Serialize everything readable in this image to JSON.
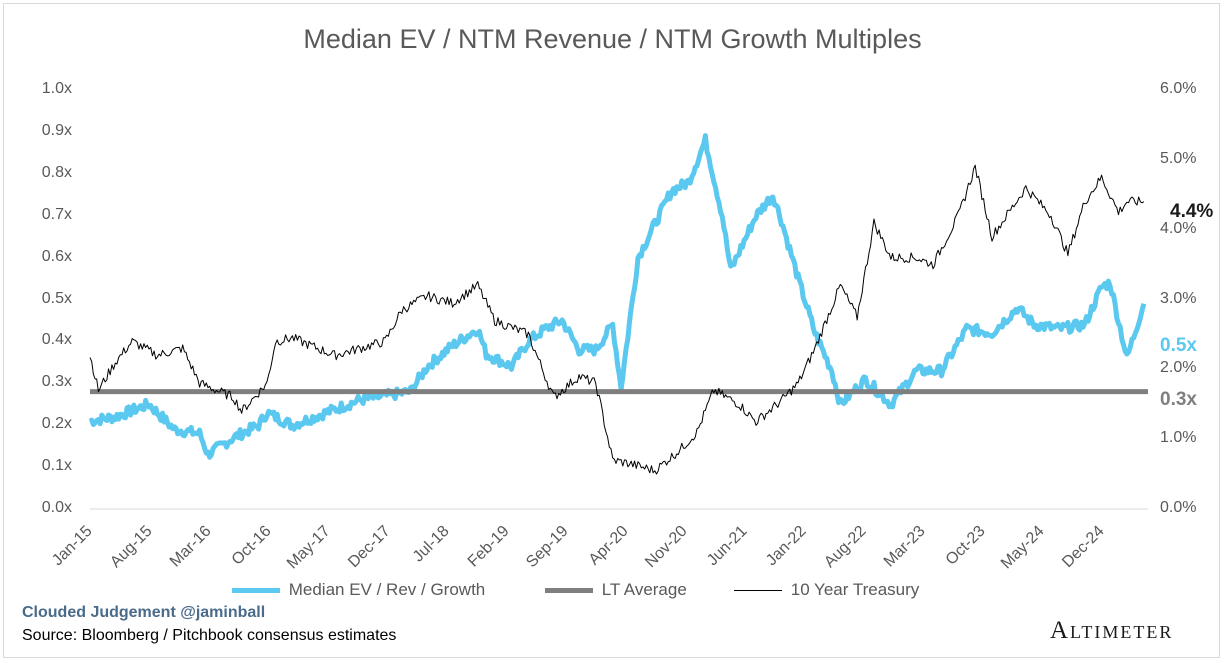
{
  "chart_data": {
    "type": "line",
    "title": "Median EV / NTM Revenue / NTM Growth Multiples",
    "x_tick_labels": [
      "Jan-15",
      "Aug-15",
      "Mar-16",
      "Oct-16",
      "May-17",
      "Dec-17",
      "Jul-18",
      "Feb-19",
      "Sep-19",
      "Apr-20",
      "Nov-20",
      "Jun-21",
      "Jan-22",
      "Aug-22",
      "Mar-23",
      "Oct-23",
      "May-24",
      "Dec-24"
    ],
    "y_left": {
      "ticks": [
        "0.0x",
        "0.1x",
        "0.2x",
        "0.3x",
        "0.4x",
        "0.5x",
        "0.6x",
        "0.7x",
        "0.8x",
        "0.9x",
        "1.0x"
      ],
      "ylim": [
        0,
        1.0
      ]
    },
    "y_right": {
      "ticks": [
        "0.0%",
        "1.0%",
        "2.0%",
        "3.0%",
        "4.0%",
        "5.0%",
        "6.0%"
      ],
      "ylim": [
        0,
        6.0
      ]
    },
    "grid": false,
    "legend_placement": "bottom",
    "series": [
      {
        "name": "Median EV / Rev / Growth",
        "axis": "left",
        "color": "#5bc8f0",
        "end_label": "0.5x",
        "points": [
          [
            "2015-01",
            0.21
          ],
          [
            "2015-04",
            0.22
          ],
          [
            "2015-08",
            0.25
          ],
          [
            "2015-11",
            0.19
          ],
          [
            "2016-02",
            0.18
          ],
          [
            "2016-03",
            0.13
          ],
          [
            "2016-06",
            0.17
          ],
          [
            "2016-09",
            0.2
          ],
          [
            "2016-10",
            0.23
          ],
          [
            "2017-01",
            0.2
          ],
          [
            "2017-05",
            0.23
          ],
          [
            "2017-09",
            0.26
          ],
          [
            "2017-12",
            0.27
          ],
          [
            "2018-03",
            0.28
          ],
          [
            "2018-05",
            0.34
          ],
          [
            "2018-08",
            0.39
          ],
          [
            "2018-11",
            0.43
          ],
          [
            "2018-12",
            0.37
          ],
          [
            "2019-03",
            0.34
          ],
          [
            "2019-05",
            0.4
          ],
          [
            "2019-07",
            0.43
          ],
          [
            "2019-09",
            0.45
          ],
          [
            "2019-11",
            0.38
          ],
          [
            "2020-01",
            0.38
          ],
          [
            "2020-03",
            0.44
          ],
          [
            "2020-04",
            0.29
          ],
          [
            "2020-06",
            0.6
          ],
          [
            "2020-08",
            0.68
          ],
          [
            "2020-10",
            0.76
          ],
          [
            "2020-12",
            0.78
          ],
          [
            "2021-02",
            0.88
          ],
          [
            "2021-04",
            0.7
          ],
          [
            "2021-05",
            0.57
          ],
          [
            "2021-08",
            0.7
          ],
          [
            "2021-10",
            0.75
          ],
          [
            "2021-11",
            0.69
          ],
          [
            "2022-01",
            0.55
          ],
          [
            "2022-03",
            0.42
          ],
          [
            "2022-05",
            0.33
          ],
          [
            "2022-06",
            0.25
          ],
          [
            "2022-09",
            0.31
          ],
          [
            "2022-12",
            0.25
          ],
          [
            "2023-03",
            0.33
          ],
          [
            "2023-06",
            0.33
          ],
          [
            "2023-09",
            0.43
          ],
          [
            "2023-12",
            0.42
          ],
          [
            "2024-03",
            0.48
          ],
          [
            "2024-05",
            0.44
          ],
          [
            "2024-08",
            0.43
          ],
          [
            "2024-11",
            0.44
          ],
          [
            "2025-01",
            0.53
          ],
          [
            "2025-02",
            0.54
          ],
          [
            "2025-04",
            0.36
          ],
          [
            "2025-06",
            0.49
          ]
        ]
      },
      {
        "name": "LT Average",
        "axis": "left",
        "color": "#7f7f7f",
        "end_label": "0.3x",
        "value": 0.28
      },
      {
        "name": "10 Year Treasury",
        "axis": "right",
        "color": "#000000",
        "end_label": "4.4%",
        "points": [
          [
            "2015-01",
            2.2
          ],
          [
            "2015-02",
            1.7
          ],
          [
            "2015-04",
            2.1
          ],
          [
            "2015-06",
            2.4
          ],
          [
            "2015-09",
            2.2
          ],
          [
            "2015-12",
            2.3
          ],
          [
            "2016-02",
            1.8
          ],
          [
            "2016-06",
            1.6
          ],
          [
            "2016-07",
            1.4
          ],
          [
            "2016-10",
            1.8
          ],
          [
            "2016-11",
            2.4
          ],
          [
            "2017-01",
            2.45
          ],
          [
            "2017-06",
            2.2
          ],
          [
            "2017-09",
            2.3
          ],
          [
            "2017-12",
            2.4
          ],
          [
            "2018-02",
            2.85
          ],
          [
            "2018-05",
            3.05
          ],
          [
            "2018-08",
            2.95
          ],
          [
            "2018-11",
            3.2
          ],
          [
            "2019-01",
            2.7
          ],
          [
            "2019-05",
            2.5
          ],
          [
            "2019-08",
            1.6
          ],
          [
            "2019-11",
            1.9
          ],
          [
            "2020-01",
            1.8
          ],
          [
            "2020-03",
            0.7
          ],
          [
            "2020-05",
            0.65
          ],
          [
            "2020-08",
            0.55
          ],
          [
            "2020-11",
            0.85
          ],
          [
            "2021-01",
            1.1
          ],
          [
            "2021-03",
            1.7
          ],
          [
            "2021-06",
            1.5
          ],
          [
            "2021-08",
            1.25
          ],
          [
            "2021-11",
            1.55
          ],
          [
            "2022-01",
            1.8
          ],
          [
            "2022-03",
            2.3
          ],
          [
            "2022-06",
            3.2
          ],
          [
            "2022-08",
            2.75
          ],
          [
            "2022-10",
            4.1
          ],
          [
            "2022-12",
            3.6
          ],
          [
            "2023-03",
            3.6
          ],
          [
            "2023-05",
            3.5
          ],
          [
            "2023-08",
            4.2
          ],
          [
            "2023-10",
            4.9
          ],
          [
            "2023-12",
            3.9
          ],
          [
            "2024-02",
            4.25
          ],
          [
            "2024-04",
            4.6
          ],
          [
            "2024-07",
            4.2
          ],
          [
            "2024-09",
            3.65
          ],
          [
            "2024-11",
            4.4
          ],
          [
            "2025-01",
            4.75
          ],
          [
            "2025-03",
            4.25
          ],
          [
            "2025-04",
            4.4
          ],
          [
            "2025-06",
            4.4
          ]
        ]
      }
    ]
  },
  "footer": {
    "credit": "Clouded Judgement @jaminball",
    "source": "Source: Bloomberg / Pitchbook consensus estimates",
    "logo": "Altimeter"
  }
}
